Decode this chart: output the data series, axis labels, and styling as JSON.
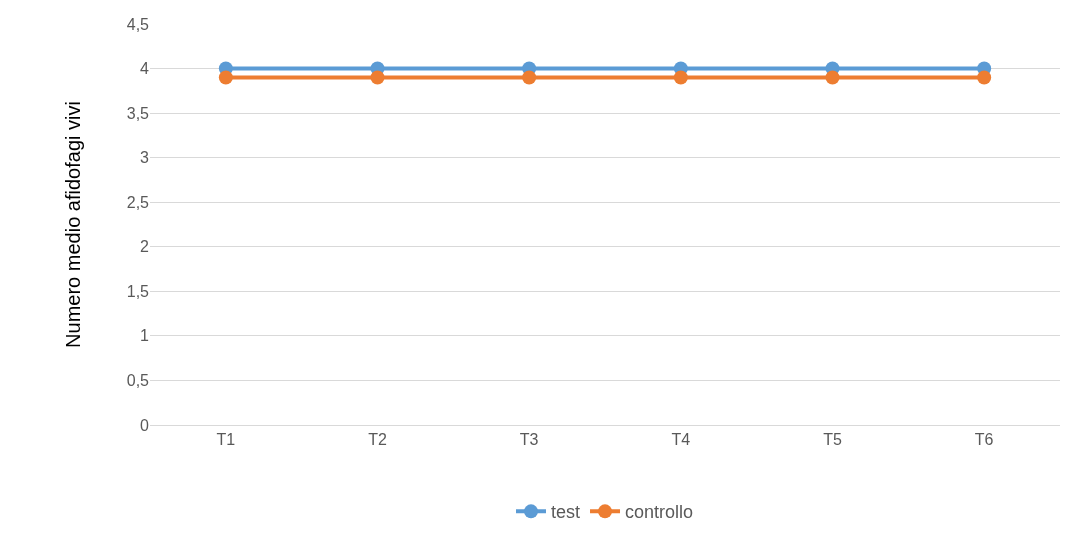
{
  "chart_data": {
    "type": "line",
    "ylabel": "Numero medio afidofagi vivi",
    "categories": [
      "T1",
      "T2",
      "T3",
      "T4",
      "T5",
      "T6"
    ],
    "series": [
      {
        "name": "test",
        "color": "#5b9bd5",
        "values": [
          4,
          4,
          4,
          4,
          4,
          4
        ]
      },
      {
        "name": "controllo",
        "color": "#ed7d31",
        "values": [
          3.9,
          3.9,
          3.9,
          3.9,
          3.9,
          3.9
        ]
      }
    ],
    "ylim": [
      0,
      4.5
    ],
    "yticks": [
      0,
      {
        "value": 0.5,
        "label": "0,5"
      },
      1,
      {
        "value": 1.5,
        "label": "1,5"
      },
      2,
      {
        "value": 2.5,
        "label": "2,5"
      },
      3,
      {
        "value": 3.5,
        "label": "3,5"
      },
      4,
      {
        "value": 4.5,
        "label": "4,5"
      }
    ],
    "grid": "y",
    "legend": "bottom",
    "marker": "circle",
    "line_style": "solid"
  }
}
